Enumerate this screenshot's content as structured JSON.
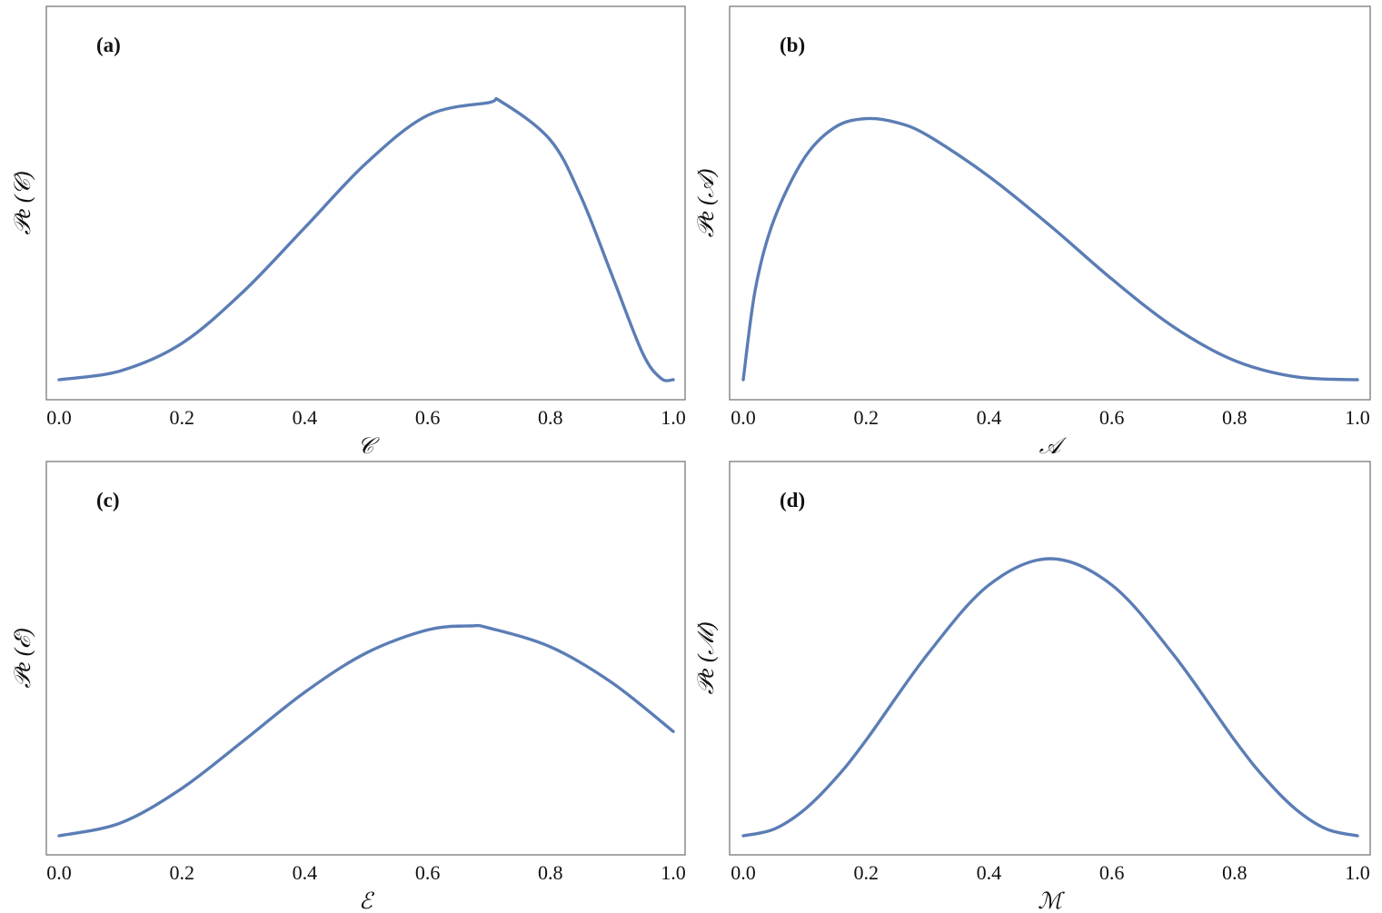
{
  "style": {
    "line_color": "#5b7db5"
  },
  "chart_data": [
    {
      "type": "line",
      "panel_label": "(a)",
      "xlabel": "𝒞",
      "ylabel": "𝒫e (𝒞)",
      "xlim": [
        0,
        1
      ],
      "xticks": [
        "0.0",
        "0.2",
        "0.4",
        "0.6",
        "0.8",
        "1.0"
      ],
      "yticks_shown": false,
      "grid": false,
      "series": [
        {
          "x": [
            0.0,
            0.1,
            0.2,
            0.3,
            0.4,
            0.5,
            0.6,
            0.7,
            0.72,
            0.8,
            0.85,
            0.9,
            0.95,
            0.98,
            1.0
          ],
          "y": [
            0.0,
            0.032,
            0.131,
            0.317,
            0.547,
            0.779,
            0.951,
            0.997,
            1.0,
            0.862,
            0.657,
            0.377,
            0.096,
            0.005,
            0.0
          ]
        }
      ]
    },
    {
      "type": "line",
      "panel_label": "(b)",
      "xlabel": "𝒜",
      "ylabel": "𝒫e (𝒜)",
      "xlim": [
        0,
        1
      ],
      "xticks": [
        "0.0",
        "0.2",
        "0.4",
        "0.6",
        "0.8",
        "1.0"
      ],
      "yticks_shown": false,
      "grid": false,
      "series": [
        {
          "x": [
            0.0,
            0.02,
            0.05,
            0.1,
            0.15,
            0.2,
            0.25,
            0.3,
            0.4,
            0.5,
            0.6,
            0.7,
            0.8,
            0.9,
            1.0
          ],
          "y": [
            0.0,
            0.35,
            0.611,
            0.849,
            0.966,
            0.998,
            0.983,
            0.934,
            0.777,
            0.588,
            0.385,
            0.203,
            0.073,
            0.011,
            0.0
          ]
        }
      ]
    },
    {
      "type": "line",
      "panel_label": "(c)",
      "xlabel": "ℰ",
      "ylabel": "𝒫e (ℰ)",
      "xlim": [
        0,
        1
      ],
      "xticks": [
        "0.0",
        "0.2",
        "0.4",
        "0.6",
        "0.8",
        "1.0"
      ],
      "yticks_shown": false,
      "grid": false,
      "series": [
        {
          "x": [
            0.0,
            0.1,
            0.2,
            0.3,
            0.4,
            0.5,
            0.6,
            0.67,
            0.7,
            0.8,
            0.9,
            1.0
          ],
          "y": [
            0.0,
            0.061,
            0.226,
            0.452,
            0.684,
            0.871,
            0.981,
            1.0,
            0.99,
            0.9,
            0.73,
            0.497
          ]
        }
      ]
    },
    {
      "type": "line",
      "panel_label": "(d)",
      "xlabel": "ℳ",
      "ylabel": "𝒫e (ℳ)",
      "xlim": [
        0,
        1
      ],
      "xticks": [
        "0.0",
        "0.2",
        "0.4",
        "0.6",
        "0.8",
        "1.0"
      ],
      "yticks_shown": false,
      "grid": false,
      "series": [
        {
          "x": [
            0.0,
            0.05,
            0.1,
            0.15,
            0.2,
            0.3,
            0.4,
            0.5,
            0.6,
            0.7,
            0.8,
            0.85,
            0.9,
            0.95,
            1.0
          ],
          "y": [
            0.0,
            0.024,
            0.095,
            0.206,
            0.345,
            0.655,
            0.905,
            1.0,
            0.905,
            0.655,
            0.345,
            0.206,
            0.095,
            0.024,
            0.0
          ]
        }
      ]
    }
  ]
}
